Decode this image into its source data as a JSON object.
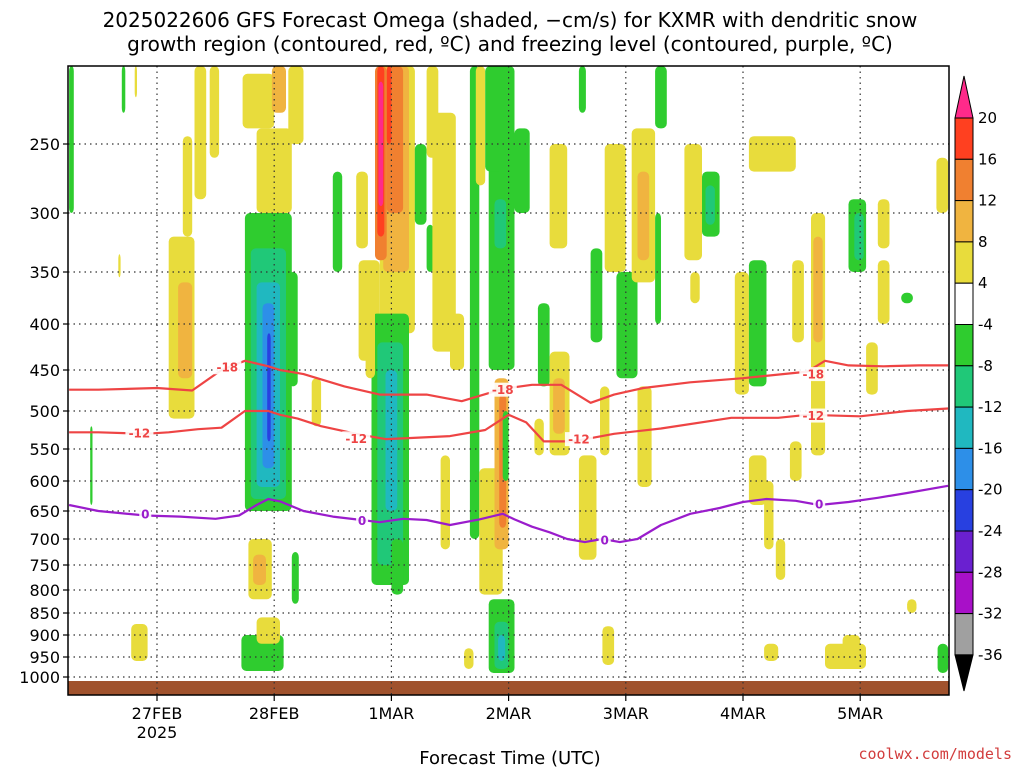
{
  "chart_data": {
    "type": "heatmap",
    "title_lines": [
      "2025022606 GFS Forecast Omega (shaded, −cm/s) for KXMR with dendritic snow",
      "growth region (contoured, red, ºC) and freezing level (contoured, purple, ºC)"
    ],
    "xlabel": "Forecast Time (UTC)",
    "credit": "coolwx.com/models",
    "x_range": [
      -0.75,
      6.75
    ],
    "x_ticks": [
      {
        "x": 0,
        "label": "27FEB",
        "sub": "2025"
      },
      {
        "x": 1,
        "label": "28FEB",
        "sub": ""
      },
      {
        "x": 2,
        "label": "1MAR",
        "sub": ""
      },
      {
        "x": 3,
        "label": "2MAR",
        "sub": ""
      },
      {
        "x": 4,
        "label": "3MAR",
        "sub": ""
      },
      {
        "x": 5,
        "label": "4MAR",
        "sub": ""
      },
      {
        "x": 6,
        "label": "5MAR",
        "sub": ""
      }
    ],
    "y_top": 200,
    "y_ticks": [
      250,
      300,
      350,
      400,
      450,
      500,
      550,
      600,
      650,
      700,
      750,
      800,
      850,
      900,
      950,
      1000
    ],
    "ground_band": [
      1010,
      1025
    ],
    "colorbar": {
      "levels": [
        20,
        16,
        12,
        8,
        4,
        -4,
        -8,
        -12,
        -16,
        -20,
        -24,
        -28,
        -32,
        -36
      ],
      "colors": [
        "#ff2a8a",
        "#ff4020",
        "#f08030",
        "#f0b440",
        "#e8dc3c",
        "#ffffff",
        "#2fcc2f",
        "#20c878",
        "#20b8c0",
        "#2d8fe8",
        "#2840e0",
        "#6a20d0",
        "#a810c8",
        "#a0a0a0",
        "#000000"
      ]
    },
    "contours": [
      {
        "name": "-18",
        "color": "#ee4444",
        "x": [
          -0.75,
          -0.5,
          0,
          0.3,
          0.55,
          0.75,
          0.95,
          1.05,
          1.25,
          1.6,
          1.9,
          2.3,
          2.6,
          2.95,
          3.2,
          3.45,
          3.7,
          3.9,
          4.15,
          4.55,
          5.0,
          5.55,
          5.7,
          5.9,
          6.2,
          6.5,
          6.75
        ],
        "y": [
          474,
          474,
          472,
          475,
          450,
          440,
          446,
          450,
          455,
          470,
          480,
          480,
          488,
          473,
          468,
          468,
          490,
          480,
          472,
          465,
          460,
          452,
          440,
          445,
          446,
          445,
          445
        ]
      },
      {
        "name": "-12",
        "color": "#ee4444",
        "x": [
          -0.75,
          -0.5,
          -0.1,
          0.1,
          0.35,
          0.55,
          0.75,
          0.95,
          1.05,
          1.2,
          1.4,
          1.7,
          1.95,
          2.1,
          2.5,
          2.8,
          3.0,
          3.15,
          3.3,
          3.55,
          3.9,
          4.3,
          4.9,
          5.3,
          5.55,
          6.0,
          6.4,
          6.75
        ],
        "y": [
          528,
          528,
          530,
          528,
          524,
          522,
          500,
          500,
          505,
          510,
          520,
          530,
          537,
          536,
          533,
          525,
          505,
          515,
          540,
          540,
          530,
          523,
          509,
          509,
          505,
          507,
          500,
          497
        ]
      },
      {
        "name": "0",
        "color": "#9a1ccc",
        "x": [
          -0.75,
          -0.5,
          -0.1,
          0.2,
          0.5,
          0.7,
          0.85,
          0.95,
          1.05,
          1.25,
          1.5,
          1.7,
          1.9,
          2.1,
          2.3,
          2.5,
          2.75,
          2.95,
          3.05,
          3.2,
          3.35,
          3.5,
          3.65,
          3.8,
          3.95,
          4.1,
          4.3,
          4.55,
          4.8,
          5.0,
          5.2,
          5.45,
          5.65,
          5.9,
          6.15,
          6.4,
          6.75
        ],
        "y": [
          640,
          650,
          658,
          660,
          664,
          658,
          640,
          630,
          634,
          650,
          660,
          665,
          670,
          664,
          666,
          675,
          665,
          655,
          665,
          678,
          688,
          700,
          706,
          700,
          706,
          700,
          675,
          655,
          645,
          635,
          630,
          633,
          640,
          635,
          628,
          620,
          608
        ]
      }
    ],
    "contour_labels": [
      {
        "text": "-18",
        "x": 0.6,
        "y": 447,
        "color": "#ee4444"
      },
      {
        "text": "-12",
        "x": -0.15,
        "y": 529,
        "color": "#ee4444"
      },
      {
        "text": "-12",
        "x": 1.7,
        "y": 536,
        "color": "#ee4444"
      },
      {
        "text": "-18",
        "x": 2.95,
        "y": 474,
        "color": "#ee4444"
      },
      {
        "text": "-12",
        "x": 3.6,
        "y": 537,
        "color": "#ee4444"
      },
      {
        "text": "-18",
        "x": 5.6,
        "y": 455,
        "color": "#ee4444"
      },
      {
        "text": "-12",
        "x": 5.6,
        "y": 506,
        "color": "#ee4444"
      },
      {
        "text": "0",
        "x": -0.1,
        "y": 655,
        "color": "#9a1ccc"
      },
      {
        "text": "0",
        "x": 1.75,
        "y": 667,
        "color": "#9a1ccc"
      },
      {
        "text": "0",
        "x": 3.82,
        "y": 702,
        "color": "#9a1ccc"
      },
      {
        "text": "0",
        "x": 5.65,
        "y": 638,
        "color": "#9a1ccc"
      }
    ],
    "shaded_cells": [
      {
        "x0": -0.75,
        "x1": -0.71,
        "p0": 200,
        "p1": 300,
        "c": -8
      },
      {
        "x0": -0.3,
        "x1": -0.27,
        "p0": 200,
        "p1": 230,
        "c": -8
      },
      {
        "x0": -0.57,
        "x1": -0.55,
        "p0": 520,
        "p1": 640,
        "c": -8
      },
      {
        "x0": -0.33,
        "x1": -0.31,
        "p0": 335,
        "p1": 355,
        "c": 4
      },
      {
        "x0": -0.19,
        "x1": -0.17,
        "p0": 200,
        "p1": 220,
        "c": 4
      },
      {
        "x0": 0.1,
        "x1": 0.32,
        "p0": 320,
        "p1": 510,
        "c": 4
      },
      {
        "x0": 0.18,
        "x1": 0.3,
        "p0": 360,
        "p1": 460,
        "c": 8
      },
      {
        "x0": 0.22,
        "x1": 0.3,
        "p0": 245,
        "p1": 320,
        "c": 4
      },
      {
        "x0": 0.45,
        "x1": 0.53,
        "p0": 200,
        "p1": 260,
        "c": 4
      },
      {
        "x0": 0.32,
        "x1": 0.42,
        "p0": 200,
        "p1": 290,
        "c": 4
      },
      {
        "x0": -0.22,
        "x1": -0.08,
        "p0": 875,
        "p1": 960,
        "c": 4
      },
      {
        "x0": 0.73,
        "x1": 1.0,
        "p0": 205,
        "p1": 240,
        "c": 4
      },
      {
        "x0": 0.98,
        "x1": 1.1,
        "p0": 200,
        "p1": 230,
        "c": 8
      },
      {
        "x0": 0.75,
        "x1": 1.15,
        "p0": 300,
        "p1": 650,
        "c": -8
      },
      {
        "x0": 0.8,
        "x1": 1.1,
        "p0": 330,
        "p1": 630,
        "c": -12
      },
      {
        "x0": 0.85,
        "x1": 1.05,
        "p0": 360,
        "p1": 610,
        "c": -16
      },
      {
        "x0": 0.9,
        "x1": 1.0,
        "p0": 380,
        "p1": 580,
        "c": -20
      },
      {
        "x0": 0.94,
        "x1": 0.97,
        "p0": 410,
        "p1": 540,
        "c": -24
      },
      {
        "x0": 0.85,
        "x1": 1.15,
        "p0": 240,
        "p1": 300,
        "c": 4
      },
      {
        "x0": 1.12,
        "x1": 1.25,
        "p0": 200,
        "p1": 250,
        "c": 4
      },
      {
        "x0": 1.12,
        "x1": 1.2,
        "p0": 350,
        "p1": 470,
        "c": -8
      },
      {
        "x0": 1.32,
        "x1": 1.4,
        "p0": 460,
        "p1": 520,
        "c": 4
      },
      {
        "x0": 1.5,
        "x1": 1.58,
        "p0": 270,
        "p1": 350,
        "c": -8
      },
      {
        "x0": 1.7,
        "x1": 1.8,
        "p0": 270,
        "p1": 330,
        "c": 4
      },
      {
        "x0": 1.72,
        "x1": 1.9,
        "p0": 340,
        "p1": 440,
        "c": 4
      },
      {
        "x0": 0.78,
        "x1": 0.98,
        "p0": 700,
        "p1": 820,
        "c": 4
      },
      {
        "x0": 0.82,
        "x1": 0.93,
        "p0": 730,
        "p1": 790,
        "c": 8
      },
      {
        "x0": 1.15,
        "x1": 1.21,
        "p0": 725,
        "p1": 830,
        "c": -8
      },
      {
        "x0": 0.72,
        "x1": 1.08,
        "p0": 900,
        "p1": 985,
        "c": -8
      },
      {
        "x0": 0.85,
        "x1": 1.05,
        "p0": 860,
        "p1": 920,
        "c": 4
      },
      {
        "x0": 1.9,
        "x1": 2.2,
        "p0": 200,
        "p1": 410,
        "c": 4
      },
      {
        "x0": 1.93,
        "x1": 2.15,
        "p0": 200,
        "p1": 350,
        "c": 8
      },
      {
        "x0": 1.96,
        "x1": 2.1,
        "p0": 200,
        "p1": 300,
        "c": 12
      },
      {
        "x0": 1.96,
        "x1": 2.0,
        "p0": 200,
        "p1": 250,
        "c": 16
      },
      {
        "x0": 1.86,
        "x1": 1.96,
        "p0": 200,
        "p1": 340,
        "c": 12
      },
      {
        "x0": 1.88,
        "x1": 1.94,
        "p0": 200,
        "p1": 320,
        "c": 16
      },
      {
        "x0": 1.89,
        "x1": 1.93,
        "p0": 210,
        "p1": 295,
        "c": 20
      },
      {
        "x0": 2.2,
        "x1": 2.3,
        "p0": 250,
        "p1": 310,
        "c": -8
      },
      {
        "x0": 2.3,
        "x1": 2.4,
        "p0": 200,
        "p1": 260,
        "c": 4
      },
      {
        "x0": 2.3,
        "x1": 2.36,
        "p0": 310,
        "p1": 350,
        "c": -8
      },
      {
        "x0": 1.83,
        "x1": 2.15,
        "p0": 390,
        "p1": 790,
        "c": -8
      },
      {
        "x0": 1.88,
        "x1": 2.1,
        "p0": 420,
        "p1": 750,
        "c": -12
      },
      {
        "x0": 1.95,
        "x1": 2.05,
        "p0": 450,
        "p1": 650,
        "c": -16
      },
      {
        "x0": 1.78,
        "x1": 1.86,
        "p0": 380,
        "p1": 460,
        "c": 4
      },
      {
        "x0": 2.0,
        "x1": 2.1,
        "p0": 700,
        "p1": 810,
        "c": -8
      },
      {
        "x0": 2.35,
        "x1": 2.55,
        "p0": 230,
        "p1": 430,
        "c": 4
      },
      {
        "x0": 2.5,
        "x1": 2.62,
        "p0": 390,
        "p1": 450,
        "c": 4
      },
      {
        "x0": 2.42,
        "x1": 2.5,
        "p0": 560,
        "p1": 720,
        "c": 4
      },
      {
        "x0": 2.67,
        "x1": 2.75,
        "p0": 180,
        "p1": 700,
        "c": -8
      },
      {
        "x0": 2.72,
        "x1": 2.8,
        "p0": 200,
        "p1": 280,
        "c": 4
      },
      {
        "x0": 2.83,
        "x1": 3.05,
        "p0": 200,
        "p1": 450,
        "c": -8
      },
      {
        "x0": 2.88,
        "x1": 2.98,
        "p0": 290,
        "p1": 330,
        "c": -12
      },
      {
        "x0": 2.8,
        "x1": 2.95,
        "p0": 200,
        "p1": 270,
        "c": -8
      },
      {
        "x0": 3.05,
        "x1": 3.18,
        "p0": 240,
        "p1": 300,
        "c": -8
      },
      {
        "x0": 2.75,
        "x1": 2.95,
        "p0": 580,
        "p1": 810,
        "c": 4
      },
      {
        "x0": 2.88,
        "x1": 3.0,
        "p0": 460,
        "p1": 720,
        "c": 8
      },
      {
        "x0": 2.92,
        "x1": 2.98,
        "p0": 480,
        "p1": 680,
        "c": 12
      },
      {
        "x0": 2.95,
        "x1": 3.0,
        "p0": 500,
        "p1": 600,
        "c": -8
      },
      {
        "x0": 2.83,
        "x1": 3.05,
        "p0": 820,
        "p1": 990,
        "c": -8
      },
      {
        "x0": 2.88,
        "x1": 3.0,
        "p0": 870,
        "p1": 980,
        "c": -12
      },
      {
        "x0": 2.91,
        "x1": 2.97,
        "p0": 900,
        "p1": 960,
        "c": -16
      },
      {
        "x0": 2.62,
        "x1": 2.7,
        "p0": 930,
        "p1": 980,
        "c": 4
      },
      {
        "x0": 3.35,
        "x1": 3.5,
        "p0": 250,
        "p1": 330,
        "c": 4
      },
      {
        "x0": 3.22,
        "x1": 3.3,
        "p0": 510,
        "p1": 560,
        "c": 4
      },
      {
        "x0": 3.25,
        "x1": 3.35,
        "p0": 380,
        "p1": 470,
        "c": -8
      },
      {
        "x0": 3.35,
        "x1": 3.52,
        "p0": 430,
        "p1": 560,
        "c": 4
      },
      {
        "x0": 3.38,
        "x1": 3.48,
        "p0": 460,
        "p1": 530,
        "c": 8
      },
      {
        "x0": 3.6,
        "x1": 3.66,
        "p0": 200,
        "p1": 230,
        "c": -8
      },
      {
        "x0": 3.7,
        "x1": 3.8,
        "p0": 330,
        "p1": 420,
        "c": -8
      },
      {
        "x0": 3.6,
        "x1": 3.75,
        "p0": 560,
        "p1": 740,
        "c": 4
      },
      {
        "x0": 3.92,
        "x1": 4.1,
        "p0": 350,
        "p1": 460,
        "c": -8
      },
      {
        "x0": 3.78,
        "x1": 3.86,
        "p0": 470,
        "p1": 560,
        "c": 4
      },
      {
        "x0": 3.82,
        "x1": 4.0,
        "p0": 250,
        "p1": 350,
        "c": 4
      },
      {
        "x0": 4.05,
        "x1": 4.25,
        "p0": 240,
        "p1": 360,
        "c": 4
      },
      {
        "x0": 4.1,
        "x1": 4.2,
        "p0": 270,
        "p1": 340,
        "c": 8
      },
      {
        "x0": 4.1,
        "x1": 4.22,
        "p0": 470,
        "p1": 610,
        "c": 4
      },
      {
        "x0": 4.25,
        "x1": 4.3,
        "p0": 300,
        "p1": 400,
        "c": -8
      },
      {
        "x0": 4.25,
        "x1": 4.35,
        "p0": 200,
        "p1": 240,
        "c": -8
      },
      {
        "x0": 3.8,
        "x1": 3.9,
        "p0": 880,
        "p1": 970,
        "c": 4
      },
      {
        "x0": 4.5,
        "x1": 4.65,
        "p0": 250,
        "p1": 340,
        "c": 4
      },
      {
        "x0": 4.55,
        "x1": 4.63,
        "p0": 350,
        "p1": 380,
        "c": 4
      },
      {
        "x0": 4.65,
        "x1": 4.8,
        "p0": 270,
        "p1": 320,
        "c": -8
      },
      {
        "x0": 4.68,
        "x1": 4.76,
        "p0": 280,
        "p1": 310,
        "c": -12
      },
      {
        "x0": 4.93,
        "x1": 5.05,
        "p0": 350,
        "p1": 480,
        "c": 4
      },
      {
        "x0": 5.05,
        "x1": 5.2,
        "p0": 560,
        "p1": 640,
        "c": 4
      },
      {
        "x0": 5.18,
        "x1": 5.26,
        "p0": 600,
        "p1": 720,
        "c": 4
      },
      {
        "x0": 5.05,
        "x1": 5.2,
        "p0": 340,
        "p1": 470,
        "c": -8
      },
      {
        "x0": 5.05,
        "x1": 5.45,
        "p0": 245,
        "p1": 270,
        "c": 4
      },
      {
        "x0": 5.42,
        "x1": 5.52,
        "p0": 340,
        "p1": 420,
        "c": 4
      },
      {
        "x0": 5.4,
        "x1": 5.5,
        "p0": 540,
        "p1": 600,
        "c": 4
      },
      {
        "x0": 5.58,
        "x1": 5.7,
        "p0": 300,
        "p1": 560,
        "c": 4
      },
      {
        "x0": 5.6,
        "x1": 5.68,
        "p0": 320,
        "p1": 420,
        "c": 8
      },
      {
        "x0": 5.28,
        "x1": 5.36,
        "p0": 700,
        "p1": 780,
        "c": 4
      },
      {
        "x0": 5.18,
        "x1": 5.3,
        "p0": 920,
        "p1": 960,
        "c": 4
      },
      {
        "x0": 5.7,
        "x1": 6.05,
        "p0": 920,
        "p1": 980,
        "c": 4
      },
      {
        "x0": 5.85,
        "x1": 6.0,
        "p0": 900,
        "p1": 940,
        "c": 4
      },
      {
        "x0": 5.9,
        "x1": 6.05,
        "p0": 290,
        "p1": 350,
        "c": -8
      },
      {
        "x0": 5.95,
        "x1": 6.03,
        "p0": 300,
        "p1": 340,
        "c": -12
      },
      {
        "x0": 6.15,
        "x1": 6.25,
        "p0": 290,
        "p1": 330,
        "c": 4
      },
      {
        "x0": 6.35,
        "x1": 6.45,
        "p0": 370,
        "p1": 380,
        "c": -8
      },
      {
        "x0": 6.15,
        "x1": 6.25,
        "p0": 340,
        "p1": 400,
        "c": 4
      },
      {
        "x0": 6.05,
        "x1": 6.15,
        "p0": 420,
        "p1": 480,
        "c": 4
      },
      {
        "x0": 6.4,
        "x1": 6.48,
        "p0": 820,
        "p1": 850,
        "c": 4
      },
      {
        "x0": 6.65,
        "x1": 6.75,
        "p0": 260,
        "p1": 300,
        "c": 4
      },
      {
        "x0": 6.66,
        "x1": 6.75,
        "p0": 920,
        "p1": 990,
        "c": -8
      }
    ]
  }
}
